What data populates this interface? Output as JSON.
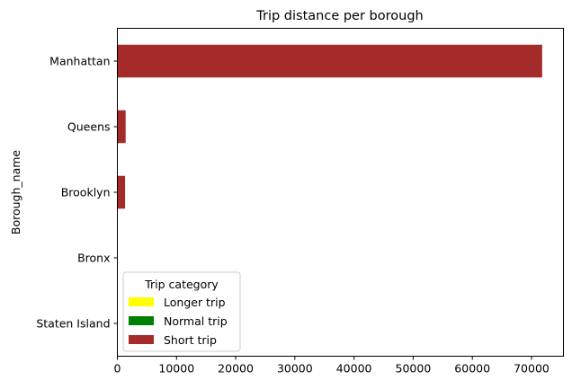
{
  "chart_data": {
    "type": "bar",
    "orientation": "horizontal",
    "stacked": true,
    "title": "Trip distance per borough",
    "xlabel": "",
    "ylabel": "Borough_name",
    "categories": [
      "Manhattan",
      "Queens",
      "Brooklyn",
      "Bronx",
      "Staten Island"
    ],
    "series": [
      {
        "name": "Longer trip",
        "color": "#ffff00",
        "values": [
          0,
          0,
          0,
          0,
          0
        ]
      },
      {
        "name": "Normal trip",
        "color": "#008000",
        "values": [
          0,
          0,
          0,
          0,
          0
        ]
      },
      {
        "name": "Short trip",
        "color": "#a52a2a",
        "values": [
          71800,
          1400,
          1300,
          0,
          0
        ]
      }
    ],
    "xlim": [
      0,
      75400
    ],
    "xticks": [
      0,
      10000,
      20000,
      30000,
      40000,
      50000,
      60000,
      70000
    ],
    "grid": false,
    "legend": {
      "title": "Trip category",
      "position": "lower-left"
    }
  }
}
